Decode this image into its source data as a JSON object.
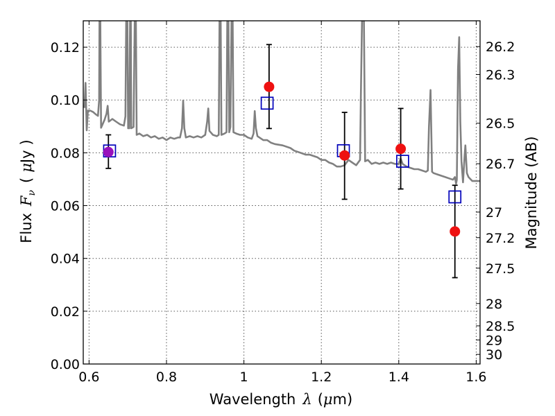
{
  "chart_data": {
    "type": "scatter",
    "xlabel": {
      "prefix": "Wavelength",
      "symbol": "λ",
      "unit": "(",
      "mu": "μ",
      "unit_tail": "m)"
    },
    "ylabel": {
      "prefix": "Flux",
      "symbol": "F",
      "sub": "ν",
      "unit_open": "(",
      "mu": "μ",
      "unit_tail": "Jy",
      "unit_close": ")"
    },
    "y2label": "Magnitude (AB)",
    "xlim": [
      0.585,
      1.61
    ],
    "ylim": [
      0.0,
      0.13
    ],
    "x_ticks": [
      "0.6",
      "0.8",
      "1",
      "1.2",
      "1.4",
      "1.6"
    ],
    "y_ticks": [
      "0.00",
      "0.02",
      "0.04",
      "0.06",
      "0.08",
      "0.10",
      "0.12"
    ],
    "mag_ticks": [
      "26.2",
      "26.3",
      "26.5",
      "26.7",
      "27",
      "27.2",
      "27.5",
      "28",
      "28.5",
      "29",
      "30"
    ],
    "grid": true,
    "colors": {
      "spectrum": "#808080",
      "observed": "#ee1111",
      "model": "#0000bb",
      "overlap": "#9911bb"
    },
    "observed": {
      "x": [
        0.65,
        1.065,
        1.26,
        1.405,
        1.545
      ],
      "y": [
        0.0803,
        0.105,
        0.079,
        0.0815,
        0.0502
      ],
      "err_low": [
        0.0741,
        0.0892,
        0.0624,
        0.0663,
        0.0327
      ],
      "err_high": [
        0.0868,
        0.121,
        0.0953,
        0.0968,
        0.0677
      ]
    },
    "model": {
      "x": [
        0.653,
        1.06,
        1.257,
        1.41,
        1.545
      ],
      "y": [
        0.0807,
        0.0988,
        0.0808,
        0.0768,
        0.0633
      ]
    },
    "spectrum": [
      [
        0.588,
        0.097
      ],
      [
        0.591,
        0.1065
      ],
      [
        0.594,
        0.0885
      ],
      [
        0.597,
        0.096
      ],
      [
        0.603,
        0.096
      ],
      [
        0.61,
        0.0955
      ],
      [
        0.618,
        0.0945
      ],
      [
        0.623,
        0.094
      ],
      [
        0.626,
        0.1
      ],
      [
        0.627,
        0.13
      ],
      [
        0.629,
        0.13
      ],
      [
        0.631,
        0.0895
      ],
      [
        0.64,
        0.0925
      ],
      [
        0.645,
        0.0948
      ],
      [
        0.648,
        0.0978
      ],
      [
        0.651,
        0.0918
      ],
      [
        0.66,
        0.0928
      ],
      [
        0.67,
        0.0918
      ],
      [
        0.68,
        0.0908
      ],
      [
        0.69,
        0.0903
      ],
      [
        0.694,
        0.0938
      ],
      [
        0.696,
        0.13
      ],
      [
        0.699,
        0.13
      ],
      [
        0.701,
        0.0893
      ],
      [
        0.704,
        0.0893
      ],
      [
        0.706,
        0.13
      ],
      [
        0.708,
        0.13
      ],
      [
        0.709,
        0.0893
      ],
      [
        0.715,
        0.0898
      ],
      [
        0.718,
        0.13
      ],
      [
        0.721,
        0.13
      ],
      [
        0.723,
        0.0868
      ],
      [
        0.73,
        0.0873
      ],
      [
        0.74,
        0.0863
      ],
      [
        0.75,
        0.0868
      ],
      [
        0.76,
        0.0858
      ],
      [
        0.77,
        0.0863
      ],
      [
        0.78,
        0.0853
      ],
      [
        0.79,
        0.0858
      ],
      [
        0.8,
        0.0848
      ],
      [
        0.81,
        0.0858
      ],
      [
        0.82,
        0.0853
      ],
      [
        0.83,
        0.0858
      ],
      [
        0.835,
        0.0858
      ],
      [
        0.84,
        0.0893
      ],
      [
        0.843,
        0.0998
      ],
      [
        0.846,
        0.0893
      ],
      [
        0.85,
        0.0858
      ],
      [
        0.86,
        0.0863
      ],
      [
        0.87,
        0.0858
      ],
      [
        0.88,
        0.0863
      ],
      [
        0.89,
        0.0858
      ],
      [
        0.9,
        0.0868
      ],
      [
        0.905,
        0.0918
      ],
      [
        0.908,
        0.0968
      ],
      [
        0.911,
        0.0883
      ],
      [
        0.92,
        0.0868
      ],
      [
        0.93,
        0.0863
      ],
      [
        0.935,
        0.0868
      ],
      [
        0.937,
        0.13
      ],
      [
        0.94,
        0.13
      ],
      [
        0.942,
        0.0868
      ],
      [
        0.95,
        0.0873
      ],
      [
        0.955,
        0.0878
      ],
      [
        0.957,
        0.13
      ],
      [
        0.96,
        0.13
      ],
      [
        0.962,
        0.0878
      ],
      [
        0.965,
        0.0898
      ],
      [
        0.968,
        0.13
      ],
      [
        0.971,
        0.13
      ],
      [
        0.973,
        0.0878
      ],
      [
        0.98,
        0.0873
      ],
      [
        0.99,
        0.0868
      ],
      [
        1.0,
        0.0868
      ],
      [
        1.01,
        0.0858
      ],
      [
        1.02,
        0.0853
      ],
      [
        1.025,
        0.0873
      ],
      [
        1.028,
        0.0958
      ],
      [
        1.031,
        0.0893
      ],
      [
        1.035,
        0.0863
      ],
      [
        1.04,
        0.0858
      ],
      [
        1.05,
        0.0848
      ],
      [
        1.06,
        0.0848
      ],
      [
        1.07,
        0.0838
      ],
      [
        1.08,
        0.0833
      ],
      [
        1.1,
        0.0828
      ],
      [
        1.12,
        0.0818
      ],
      [
        1.13,
        0.0808
      ],
      [
        1.14,
        0.0803
      ],
      [
        1.15,
        0.0798
      ],
      [
        1.16,
        0.0793
      ],
      [
        1.17,
        0.0793
      ],
      [
        1.18,
        0.0788
      ],
      [
        1.19,
        0.0783
      ],
      [
        1.2,
        0.0773
      ],
      [
        1.21,
        0.0773
      ],
      [
        1.22,
        0.0763
      ],
      [
        1.23,
        0.0758
      ],
      [
        1.24,
        0.0748
      ],
      [
        1.25,
        0.0748
      ],
      [
        1.26,
        0.0753
      ],
      [
        1.27,
        0.0773
      ],
      [
        1.28,
        0.0763
      ],
      [
        1.29,
        0.0753
      ],
      [
        1.3,
        0.0773
      ],
      [
        1.302,
        0.1
      ],
      [
        1.305,
        0.13
      ],
      [
        1.31,
        0.13
      ],
      [
        1.313,
        0.0768
      ],
      [
        1.32,
        0.0773
      ],
      [
        1.33,
        0.0758
      ],
      [
        1.34,
        0.0763
      ],
      [
        1.35,
        0.0758
      ],
      [
        1.36,
        0.0763
      ],
      [
        1.37,
        0.0758
      ],
      [
        1.38,
        0.0763
      ],
      [
        1.39,
        0.0758
      ],
      [
        1.4,
        0.0758
      ],
      [
        1.405,
        0.0778
      ],
      [
        1.41,
        0.0758
      ],
      [
        1.42,
        0.0748
      ],
      [
        1.43,
        0.0743
      ],
      [
        1.44,
        0.0738
      ],
      [
        1.45,
        0.0738
      ],
      [
        1.46,
        0.0733
      ],
      [
        1.47,
        0.0728
      ],
      [
        1.475,
        0.0733
      ],
      [
        1.478,
        0.0898
      ],
      [
        1.482,
        0.1038
      ],
      [
        1.486,
        0.0728
      ],
      [
        1.49,
        0.0723
      ],
      [
        1.5,
        0.0718
      ],
      [
        1.51,
        0.0713
      ],
      [
        1.52,
        0.0708
      ],
      [
        1.53,
        0.0703
      ],
      [
        1.54,
        0.0698
      ],
      [
        1.545,
        0.0708
      ],
      [
        1.548,
        0.0683
      ],
      [
        1.55,
        0.0698
      ],
      [
        1.553,
        0.1118
      ],
      [
        1.556,
        0.1238
      ],
      [
        1.559,
        0.0918
      ],
      [
        1.562,
        0.0768
      ],
      [
        1.566,
        0.0688
      ],
      [
        1.57,
        0.0788
      ],
      [
        1.572,
        0.0828
      ],
      [
        1.576,
        0.0723
      ],
      [
        1.58,
        0.0708
      ],
      [
        1.59,
        0.0693
      ],
      [
        1.61,
        0.0693
      ]
    ]
  }
}
